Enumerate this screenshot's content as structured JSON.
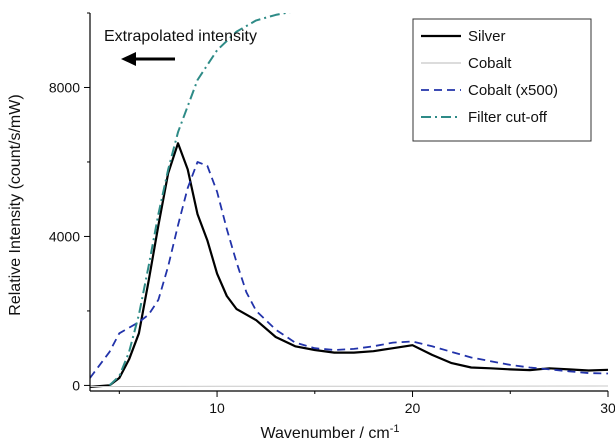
{
  "chart_data": {
    "type": "line",
    "xlabel_main": "Wavenumber / cm",
    "xlabel_sup": "-1",
    "ylabel": "Relative Intensity (count/s/mW)",
    "xlim": [
      3.5,
      30
    ],
    "ylim": [
      -150,
      10000
    ],
    "xticks": [
      10,
      20,
      30
    ],
    "yticks": [
      0,
      4000,
      8000
    ],
    "grid": false,
    "legend_position": "top-right",
    "annotation": "Extrapolated intensity",
    "series": [
      {
        "name": "Silver",
        "color": "#000000",
        "style": "solid",
        "width": 2.2,
        "points": [
          [
            3.5,
            -40
          ],
          [
            4.5,
            0
          ],
          [
            5,
            200
          ],
          [
            5.5,
            700
          ],
          [
            6,
            1400
          ],
          [
            6.5,
            2800
          ],
          [
            7,
            4300
          ],
          [
            7.5,
            5700
          ],
          [
            8,
            6500
          ],
          [
            8.5,
            5800
          ],
          [
            9,
            4600
          ],
          [
            9.5,
            3900
          ],
          [
            10,
            3000
          ],
          [
            10.5,
            2400
          ],
          [
            11,
            2050
          ],
          [
            12,
            1750
          ],
          [
            13,
            1300
          ],
          [
            14,
            1050
          ],
          [
            15,
            950
          ],
          [
            16,
            880
          ],
          [
            17,
            880
          ],
          [
            18,
            920
          ],
          [
            19,
            1000
          ],
          [
            20,
            1080
          ],
          [
            21,
            820
          ],
          [
            22,
            600
          ],
          [
            23,
            480
          ],
          [
            24,
            460
          ],
          [
            25,
            430
          ],
          [
            26,
            410
          ],
          [
            27,
            460
          ],
          [
            28,
            430
          ],
          [
            29,
            400
          ],
          [
            30,
            420
          ]
        ]
      },
      {
        "name": "Cobalt",
        "color": "#c8c8c8",
        "style": "solid",
        "width": 1,
        "points": [
          [
            3.5,
            -30
          ],
          [
            10,
            -25
          ],
          [
            20,
            -20
          ],
          [
            30,
            -15
          ]
        ]
      },
      {
        "name": "Cobalt (x500)",
        "color": "#2233aa",
        "style": "dashed",
        "width": 1.8,
        "points": [
          [
            3.5,
            200
          ],
          [
            4.5,
            900
          ],
          [
            5,
            1400
          ],
          [
            6,
            1700
          ],
          [
            6.5,
            1900
          ],
          [
            7,
            2300
          ],
          [
            7.5,
            3200
          ],
          [
            8,
            4300
          ],
          [
            8.5,
            5300
          ],
          [
            9,
            6000
          ],
          [
            9.5,
            5900
          ],
          [
            10,
            5200
          ],
          [
            10.5,
            4200
          ],
          [
            11,
            3300
          ],
          [
            11.5,
            2500
          ],
          [
            12,
            2000
          ],
          [
            13,
            1500
          ],
          [
            14,
            1150
          ],
          [
            15,
            1000
          ],
          [
            16,
            950
          ],
          [
            17,
            980
          ],
          [
            18,
            1050
          ],
          [
            19,
            1150
          ],
          [
            20,
            1180
          ],
          [
            21,
            1050
          ],
          [
            22,
            900
          ],
          [
            23,
            750
          ],
          [
            24,
            650
          ],
          [
            25,
            550
          ],
          [
            26,
            480
          ],
          [
            27,
            430
          ],
          [
            28,
            380
          ],
          [
            29,
            330
          ],
          [
            30,
            320
          ]
        ]
      },
      {
        "name": "Filter cut-off",
        "color": "#2e8b87",
        "style": "dashdot",
        "width": 2,
        "points": [
          [
            4.5,
            0
          ],
          [
            5,
            250
          ],
          [
            5.5,
            900
          ],
          [
            6,
            1900
          ],
          [
            6.5,
            3200
          ],
          [
            7,
            4600
          ],
          [
            7.5,
            5800
          ],
          [
            8,
            6800
          ],
          [
            9,
            8200
          ],
          [
            10,
            9000
          ],
          [
            11,
            9500
          ],
          [
            12,
            9800
          ],
          [
            13,
            9950
          ],
          [
            14,
            10050
          ]
        ]
      }
    ]
  }
}
